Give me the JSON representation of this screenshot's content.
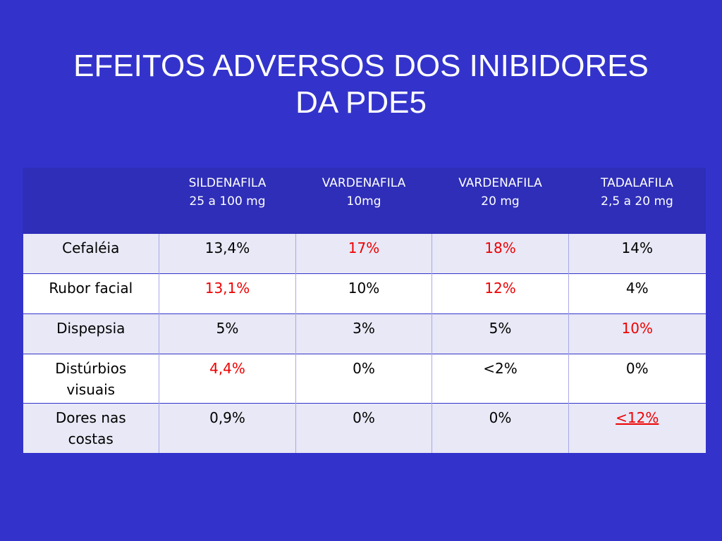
{
  "slide": {
    "title_line1": "EFEITOS ADVERSOS DOS INIBIDORES",
    "title_line2": "DA PDE5"
  },
  "colors": {
    "background": "#3333cc",
    "header_background": "#2e2eb8",
    "highlight": "#ee0000"
  },
  "table": {
    "headers": [
      {
        "line1": "",
        "line2": ""
      },
      {
        "line1": "SILDENAFILA",
        "line2": "25 a 100 mg"
      },
      {
        "line1": "VARDENAFILA",
        "line2": "10mg"
      },
      {
        "line1": "VARDENAFILA",
        "line2": "20 mg"
      },
      {
        "line1": "TADALAFILA",
        "line2": "2,5 a 20 mg"
      }
    ],
    "rows": [
      {
        "label_line1": "Cefaléia",
        "label_line2": "",
        "cells": [
          "13,4%",
          "17%",
          "18%",
          "14%"
        ],
        "highlighted": [
          false,
          true,
          true,
          false
        ]
      },
      {
        "label_line1": "Rubor facial",
        "label_line2": "",
        "cells": [
          "13,1%",
          "10%",
          "12%",
          "4%"
        ],
        "highlighted": [
          true,
          false,
          true,
          false
        ]
      },
      {
        "label_line1": "Dispepsia",
        "label_line2": "",
        "cells": [
          "5%",
          "3%",
          "5%",
          "10%"
        ],
        "highlighted": [
          false,
          false,
          false,
          true
        ]
      },
      {
        "label_line1": "Distúrbios",
        "label_line2": "visuais",
        "cells": [
          "4,4%",
          "0%",
          "<2%",
          "0%"
        ],
        "highlighted": [
          true,
          false,
          false,
          false
        ]
      },
      {
        "label_line1": "Dores nas",
        "label_line2": "costas",
        "cells": [
          "0,9%",
          "0%",
          "0%",
          "<12%"
        ],
        "highlighted": [
          false,
          false,
          false,
          true
        ]
      }
    ]
  }
}
